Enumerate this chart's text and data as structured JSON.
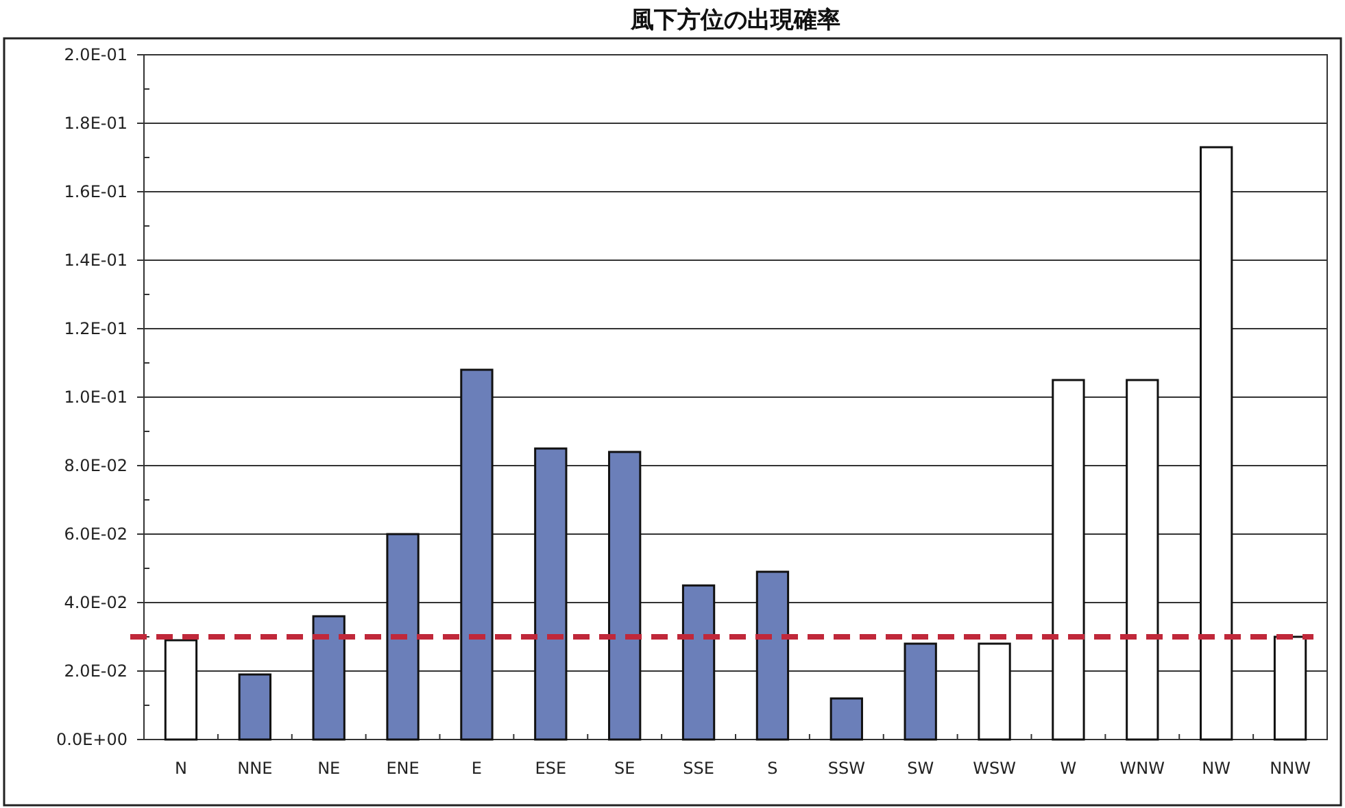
{
  "chart_data": {
    "type": "bar",
    "title": "風下方位の出現確率",
    "categories": [
      "N",
      "NNE",
      "NE",
      "ENE",
      "E",
      "ESE",
      "SE",
      "SSE",
      "S",
      "SSW",
      "SW",
      "WSW",
      "W",
      "WNW",
      "NW",
      "NNW"
    ],
    "values": [
      0.029,
      0.019,
      0.036,
      0.06,
      0.108,
      0.085,
      0.084,
      0.045,
      0.049,
      0.012,
      0.028,
      0.028,
      0.105,
      0.105,
      0.173,
      0.03
    ],
    "colors": [
      "#ffffff",
      "#6b7fb9",
      "#6b7fb9",
      "#6b7fb9",
      "#6b7fb9",
      "#6b7fb9",
      "#6b7fb9",
      "#6b7fb9",
      "#6b7fb9",
      "#6b7fb9",
      "#6b7fb9",
      "#ffffff",
      "#ffffff",
      "#ffffff",
      "#ffffff",
      "#ffffff"
    ],
    "ylim": [
      0,
      0.2
    ],
    "yticks": [
      {
        "value": 0,
        "label": "0.0E+00"
      },
      {
        "value": 0.01,
        "label": null
      },
      {
        "value": 0.02,
        "label": "2.0E-02"
      },
      {
        "value": 0.03,
        "label": null
      },
      {
        "value": 0.04,
        "label": "4.0E-02"
      },
      {
        "value": 0.05,
        "label": null
      },
      {
        "value": 0.06,
        "label": "6.0E-02"
      },
      {
        "value": 0.07,
        "label": null
      },
      {
        "value": 0.08,
        "label": "8.0E-02"
      },
      {
        "value": 0.09,
        "label": null
      },
      {
        "value": 0.1,
        "label": "1.0E-01"
      },
      {
        "value": 0.11,
        "label": null
      },
      {
        "value": 0.12,
        "label": "1.2E-01"
      },
      {
        "value": 0.13,
        "label": null
      },
      {
        "value": 0.14,
        "label": "1.4E-01"
      },
      {
        "value": 0.15,
        "label": null
      },
      {
        "value": 0.16,
        "label": "1.6E-01"
      },
      {
        "value": 0.17,
        "label": null
      },
      {
        "value": 0.18,
        "label": "1.8E-01"
      },
      {
        "value": 0.19,
        "label": null
      },
      {
        "value": 0.2,
        "label": "2.0E-01"
      }
    ],
    "grid": "y",
    "ref_lines": [
      {
        "axis": "y",
        "value": 0.03,
        "color": "#c0283a",
        "line_style": "dashed"
      }
    ]
  }
}
